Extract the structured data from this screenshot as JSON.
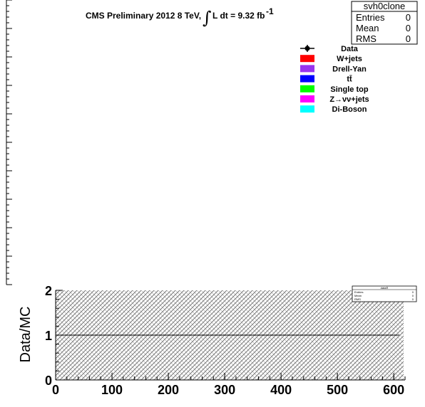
{
  "header": {
    "prefix": "CMS Preliminary 2012 8 TeV,",
    "integral_sign": "∫",
    "lumi": "L dt = 9.32 fb",
    "lumi_exp": "-1"
  },
  "stats_box": {
    "title": "svh0clone",
    "rows": [
      {
        "label": "Entries",
        "value": "0"
      },
      {
        "label": "Mean",
        "value": "0"
      },
      {
        "label": "RMS",
        "value": "0"
      }
    ]
  },
  "mini_stats": {
    "title": "dataR",
    "rows": [
      {
        "label": "Entries",
        "value": "0"
      },
      {
        "label": "Mean",
        "value": "0"
      },
      {
        "label": "RMS",
        "value": "0"
      }
    ]
  },
  "legend": [
    {
      "label": "Data",
      "color": "#000000",
      "style": "marker"
    },
    {
      "label": "W+jets",
      "color": "#ff0000",
      "style": "fill"
    },
    {
      "label": "Drell-Yan",
      "color": "#9933ee",
      "style": "fill"
    },
    {
      "label": "tt̄",
      "color": "#0000ff",
      "style": "fill"
    },
    {
      "label": "Single top",
      "color": "#00ff00",
      "style": "fill"
    },
    {
      "label": "Z→νν+jets",
      "color": "#ff00ff",
      "style": "fill"
    },
    {
      "label": "Di-Boson",
      "color": "#00ffff",
      "style": "fill"
    }
  ],
  "chart_data": [
    {
      "type": "bar",
      "ylim": [
        0,
        10
      ],
      "series": [],
      "stats_title": "svh0clone"
    },
    {
      "type": "line",
      "ylabel": "Data/MC",
      "xlim": [
        0,
        620
      ],
      "ylim": [
        0,
        2
      ],
      "x_ticks": [
        "0",
        "100",
        "200",
        "300",
        "400",
        "500",
        "600"
      ],
      "y_ticks": [
        "0",
        "1",
        "2"
      ],
      "reference_line": 1,
      "uncertainty_band": {
        "low": 0,
        "high": 2,
        "pattern": "hatched"
      }
    }
  ]
}
